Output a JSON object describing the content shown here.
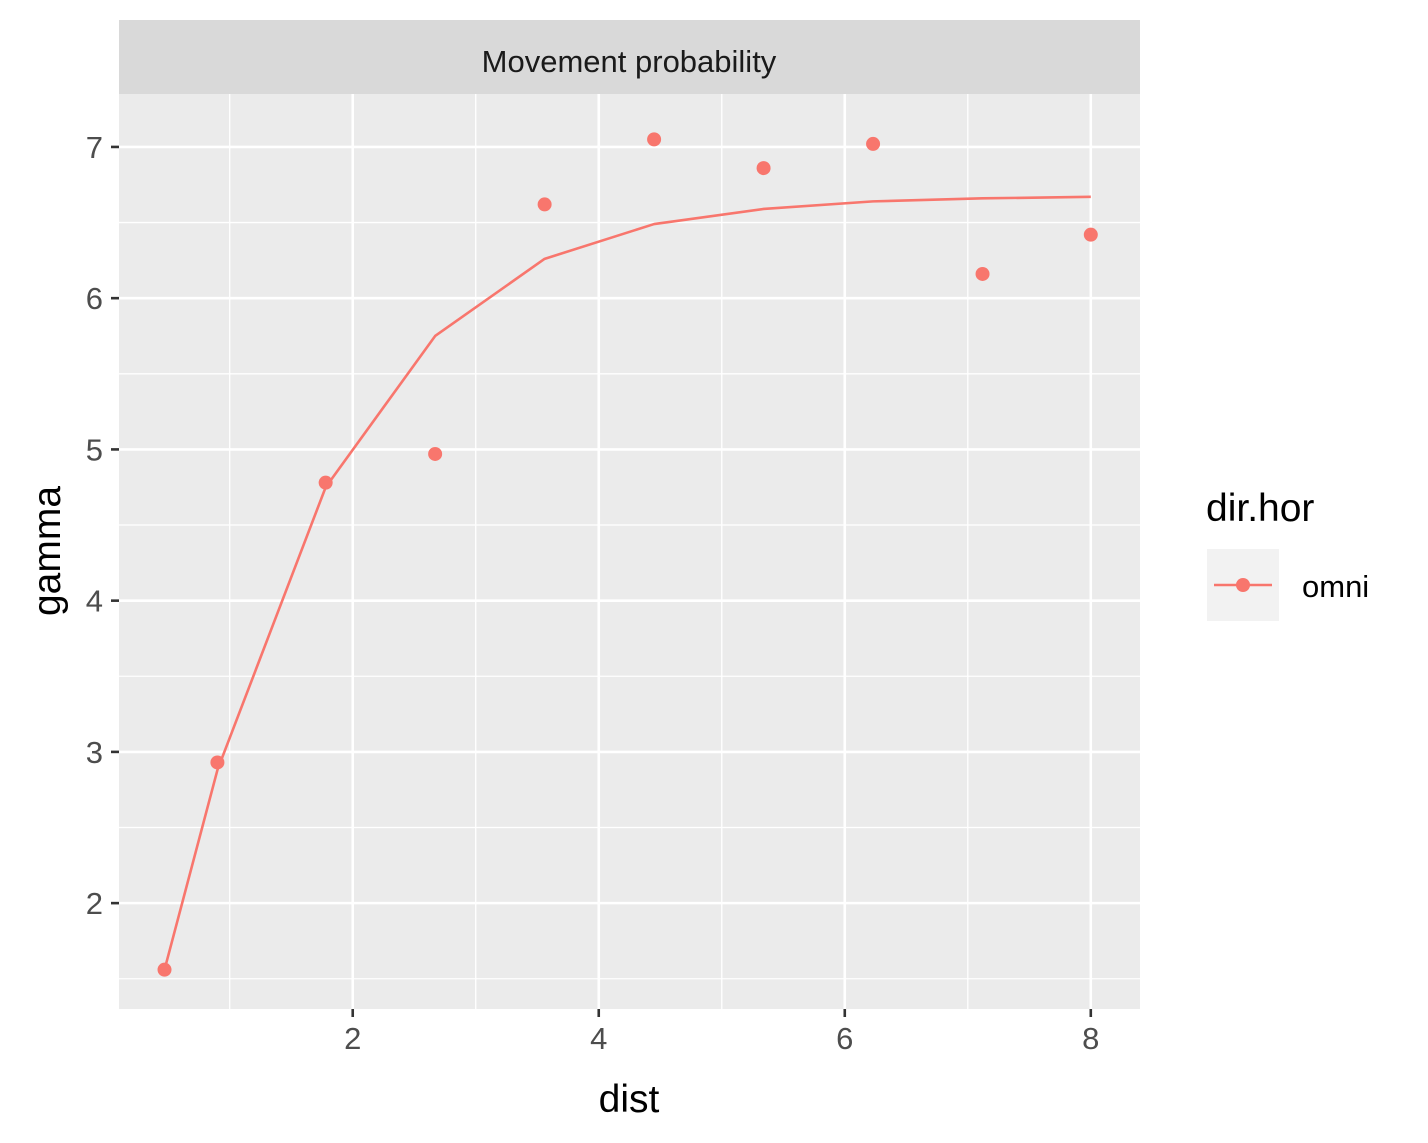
{
  "chart_data": {
    "type": "scatter",
    "title": "",
    "facet_strip": "Movement probability",
    "xlabel": "dist",
    "ylabel": "gamma",
    "xlim": [
      0.1,
      8.4
    ],
    "ylim": [
      1.3,
      7.35
    ],
    "x_ticks": [
      2,
      4,
      6,
      8
    ],
    "y_ticks": [
      2,
      3,
      4,
      5,
      6,
      7
    ],
    "x_tick_labels": [
      "2",
      "4",
      "6",
      "8"
    ],
    "y_tick_labels": [
      "2",
      "3",
      "4",
      "5",
      "6",
      "7"
    ],
    "grid": true,
    "legend": {
      "title": "dir.hor",
      "position": "right",
      "entries": [
        "omni"
      ]
    },
    "series": [
      {
        "name": "omni",
        "color": "#f8766d",
        "points": {
          "x": [
            0.47,
            0.9,
            1.78,
            2.67,
            3.56,
            4.45,
            5.34,
            6.23,
            7.12,
            8.0
          ],
          "y": [
            1.56,
            2.93,
            4.78,
            4.97,
            6.62,
            7.05,
            6.86,
            7.02,
            6.16,
            6.42
          ]
        },
        "fitted_line": {
          "x": [
            0.47,
            0.9,
            1.78,
            2.67,
            3.56,
            4.45,
            5.34,
            6.23,
            7.12,
            8.0
          ],
          "y": [
            1.56,
            2.88,
            4.75,
            5.75,
            6.26,
            6.49,
            6.59,
            6.64,
            6.66,
            6.67
          ]
        }
      }
    ]
  }
}
